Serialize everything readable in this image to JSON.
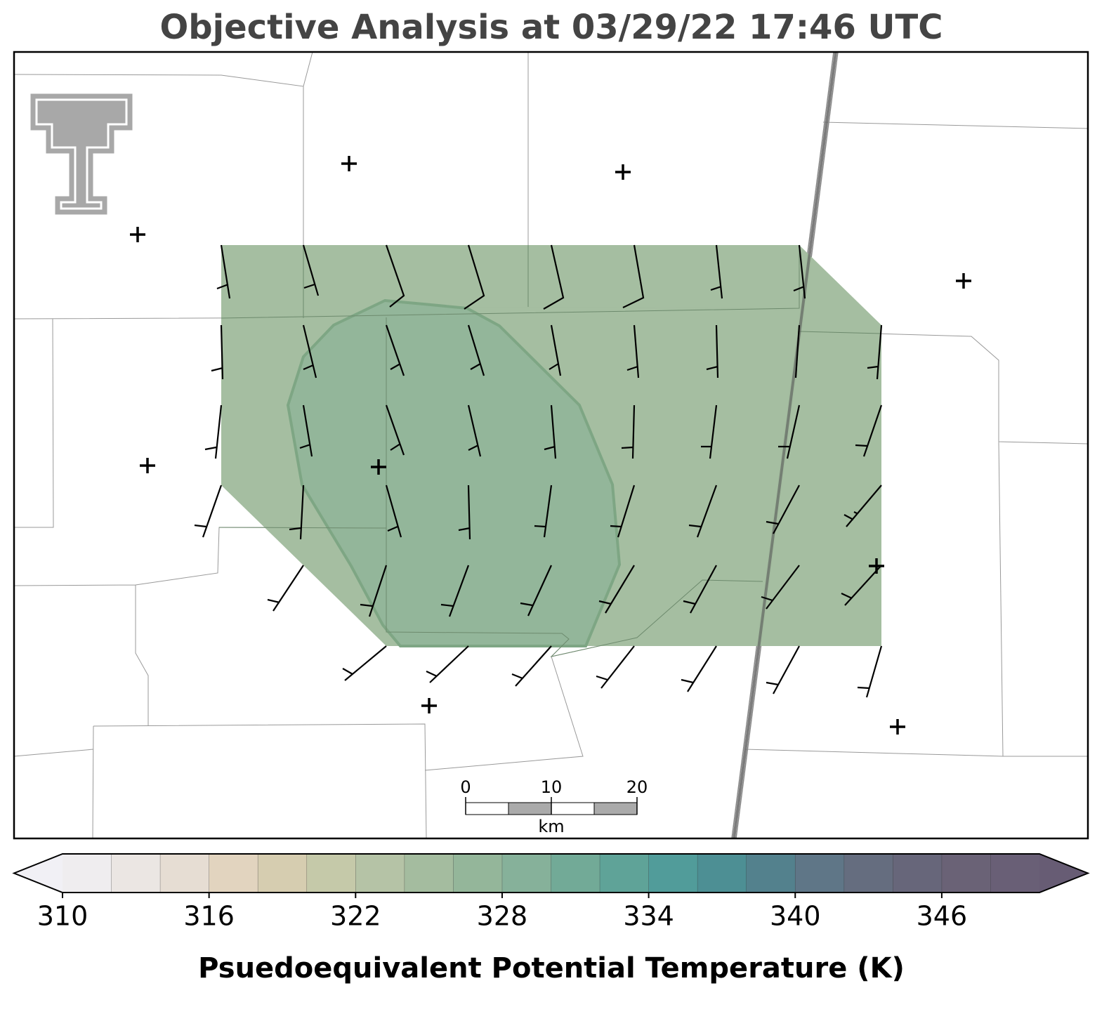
{
  "title": "Objective Analysis at 03/29/22 17:46 UTC",
  "scale_bar": {
    "ticks": [
      0,
      10,
      20
    ],
    "unit": "km"
  },
  "colorbar": {
    "label": "Psuedoequivalent Potential Temperature (K)",
    "lim": [
      310,
      350
    ],
    "ticks": [
      310,
      316,
      322,
      328,
      334,
      340,
      346
    ],
    "colors": [
      "#efedef",
      "#ebe6e3",
      "#e6ddd3",
      "#e2d4bf",
      "#d6cdb0",
      "#c5c9a9",
      "#b5c3a6",
      "#a4bc9f",
      "#94b69a",
      "#86b19a",
      "#72aa97",
      "#5fa398",
      "#519c9a",
      "#4d8f94",
      "#53818d",
      "#5f7687",
      "#656d7f",
      "#67667a",
      "#6a6276",
      "#695f76"
    ],
    "extend_colors": [
      "#f1f0f5",
      "#675c74"
    ]
  }
}
